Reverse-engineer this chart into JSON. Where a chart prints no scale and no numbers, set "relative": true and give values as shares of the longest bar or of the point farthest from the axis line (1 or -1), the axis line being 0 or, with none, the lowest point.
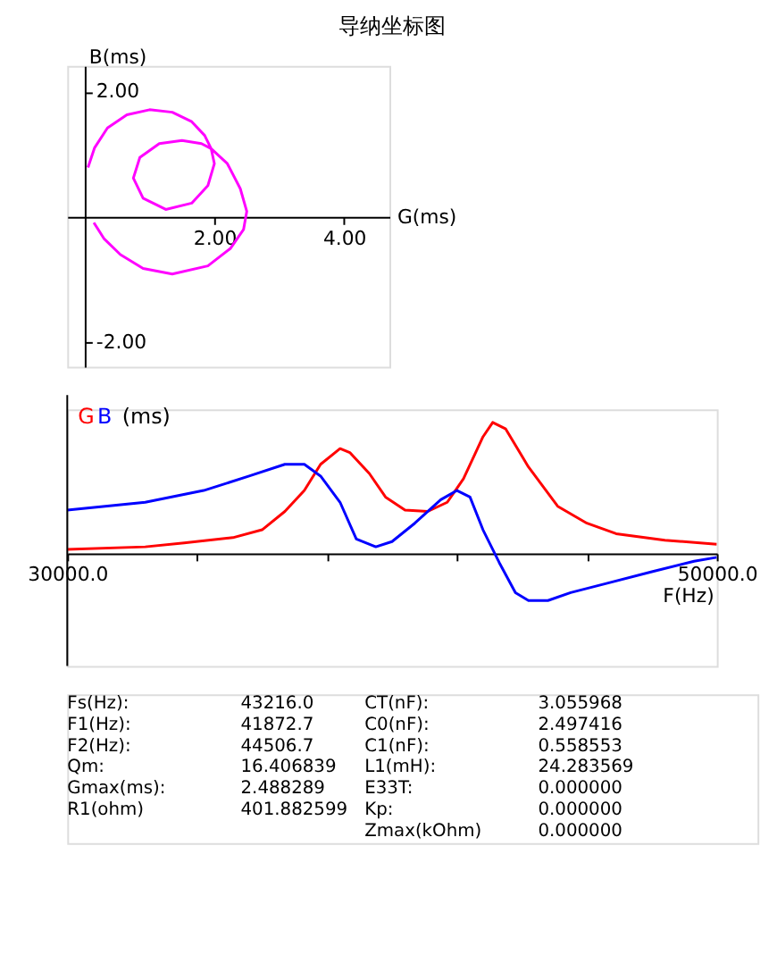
{
  "chart_data": [
    {
      "type": "line",
      "title": "导纳坐标图",
      "xlabel": "G(ms)",
      "ylabel": "B(ms)",
      "color": "#ff00ff",
      "grid": false,
      "x": [
        0.05,
        0.15,
        0.35,
        0.65,
        1.0,
        1.35,
        1.65,
        1.85,
        1.95,
        2.0,
        1.9,
        1.65,
        1.25,
        0.9,
        0.75,
        0.85,
        1.15,
        1.5,
        1.8,
        1.95,
        2.2,
        2.4,
        2.5,
        2.45,
        2.25,
        1.9,
        1.35,
        0.9,
        0.55,
        0.3,
        0.14
      ],
      "values": [
        0.79,
        1.1,
        1.42,
        1.63,
        1.71,
        1.67,
        1.52,
        1.3,
        1.09,
        0.85,
        0.5,
        0.22,
        0.12,
        0.3,
        0.62,
        0.95,
        1.17,
        1.22,
        1.17,
        1.09,
        0.85,
        0.45,
        0.09,
        -0.2,
        -0.5,
        -0.78,
        -0.91,
        -0.82,
        -0.6,
        -0.35,
        -0.09
      ],
      "xlim": [
        -0.27,
        4.7
      ],
      "ylim": [
        -2.39,
        2.41
      ],
      "xticks": [
        {
          "value": 2,
          "label": "2.00"
        },
        {
          "value": 4,
          "label": "4.00"
        }
      ],
      "yticks": [
        {
          "value": -2,
          "label": "-2.00"
        },
        {
          "value": 2,
          "label": "2.00"
        }
      ]
    },
    {
      "type": "line",
      "relative": true,
      "xlabel": "F(Hz)",
      "ylabel": "(ms)",
      "grid": false,
      "xlim": [
        30000,
        50000
      ],
      "xticks": [
        {
          "value": 30000,
          "label": "30000.0"
        },
        {
          "value": 34000,
          "label": null
        },
        {
          "value": 38000,
          "label": null
        },
        {
          "value": 42000,
          "label": null
        },
        {
          "value": 46000,
          "label": null
        },
        {
          "value": 50000,
          "label": "50000.0"
        }
      ],
      "series": [
        {
          "name": "G",
          "color": "#ff0000",
          "x": [
            30000,
            32400,
            33600,
            35100,
            36000,
            36700,
            37300,
            37800,
            38400,
            38700,
            39300,
            39800,
            40400,
            41100,
            41700,
            42200,
            42800,
            43100,
            43500,
            44200,
            45100,
            46000,
            46900,
            48400,
            50000
          ],
          "values": [
            0.03,
            0.05,
            0.08,
            0.12,
            0.18,
            0.32,
            0.48,
            0.68,
            0.8,
            0.77,
            0.61,
            0.43,
            0.33,
            0.32,
            0.39,
            0.57,
            0.89,
            1.0,
            0.95,
            0.66,
            0.36,
            0.23,
            0.15,
            0.1,
            0.07
          ]
        },
        {
          "name": "B",
          "color": "#0000ff",
          "x": [
            30000,
            32400,
            34200,
            35600,
            36700,
            37300,
            37800,
            38400,
            38900,
            39500,
            40000,
            40700,
            41500,
            42000,
            42400,
            42800,
            43300,
            43800,
            44200,
            44800,
            45500,
            46600,
            48000,
            49300,
            50000
          ],
          "values": [
            0.33,
            0.39,
            0.48,
            0.59,
            0.68,
            0.68,
            0.59,
            0.39,
            0.11,
            0.05,
            0.09,
            0.23,
            0.41,
            0.48,
            0.43,
            0.18,
            -0.07,
            -0.3,
            -0.36,
            -0.36,
            -0.3,
            -0.23,
            -0.14,
            -0.06,
            -0.03
          ]
        }
      ],
      "annotations": [
        "Fs(Hz):",
        "43216.0",
        "F1(Hz):",
        "41872.7",
        "F2(Hz):",
        "44506.7",
        "Qm:",
        "16.406839",
        "Gmax(ms):",
        "2.488289",
        "R1(ohm)",
        "401.882599",
        "CT(nF):",
        "3.055968",
        "C0(nF):",
        "2.497416",
        "C1(nF):",
        "0.558553",
        "L1(mH):",
        "24.283569",
        "E33T:",
        "0.000000",
        "Kp:",
        "0.000000",
        "Zmax(kOhm)",
        "0.000000"
      ]
    }
  ]
}
